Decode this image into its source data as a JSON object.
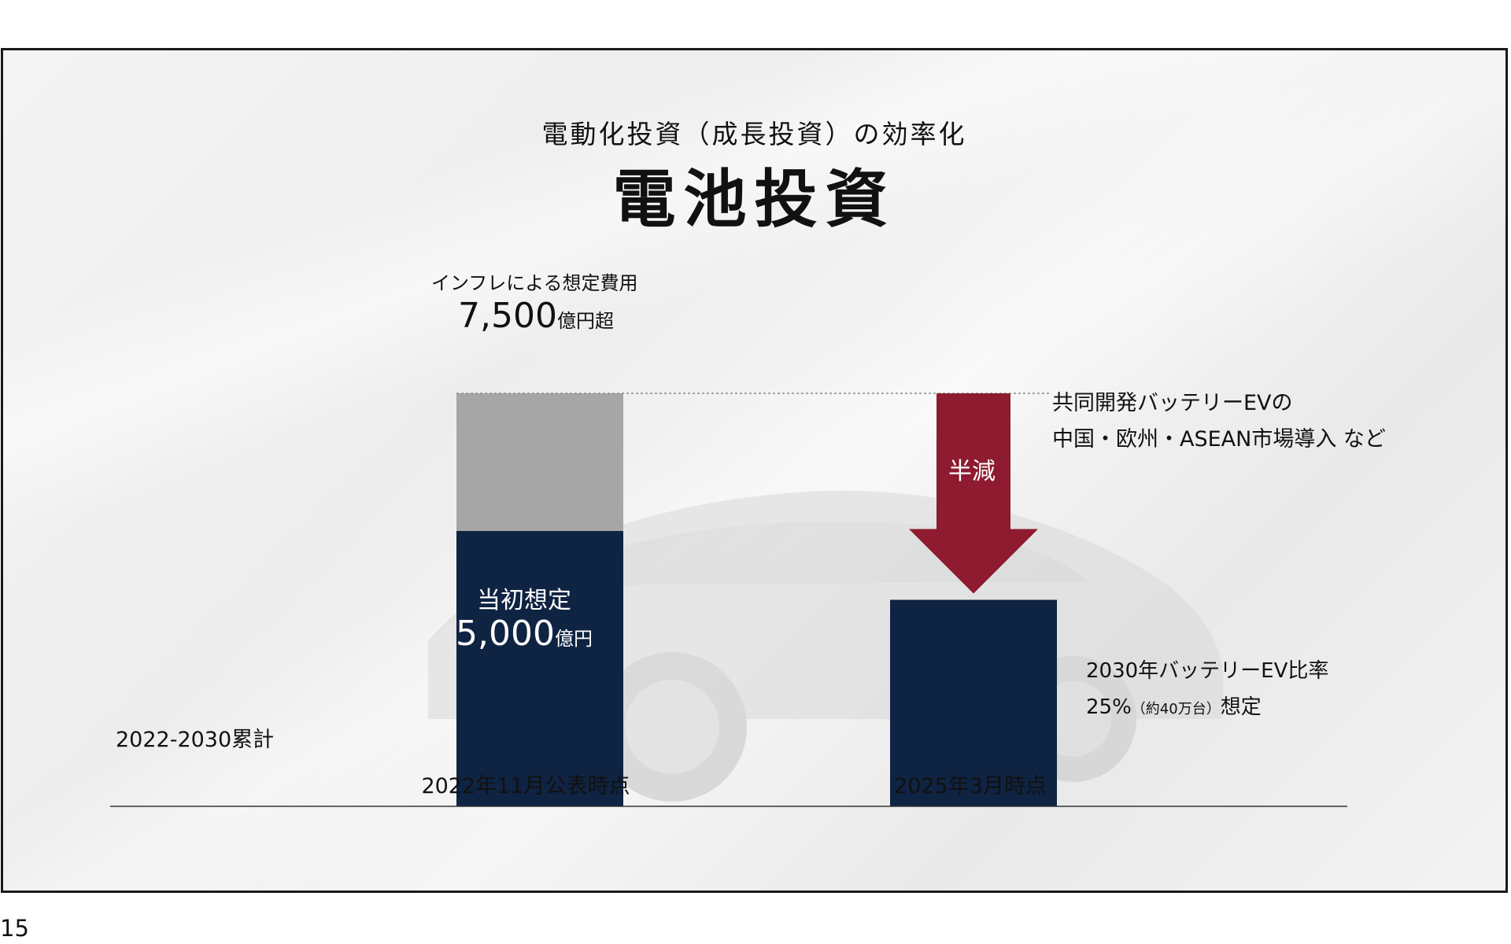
{
  "slide": {
    "subtitle": "電動化投資（成長投資）の効率化",
    "title": "電池投資",
    "page_number": "15"
  },
  "colors": {
    "navy": "#0f2342",
    "inflation_gray": "#a6a6a6",
    "arrow_red": "#8e1b2f"
  },
  "chart_data": {
    "type": "bar",
    "stacked": true,
    "unit": "億円",
    "categories": [
      "2022年11月公表時点",
      "2025年3月時点"
    ],
    "series": [
      {
        "name": "当初想定",
        "values": [
          5000,
          3750
        ]
      },
      {
        "name": "インフレによる想定費用",
        "values": [
          2500,
          0
        ]
      }
    ],
    "ylim": [
      0,
      7500
    ],
    "cumulative_label": "2022-2030累計",
    "annotations": {
      "inflation_label": "インフレによる想定費用",
      "inflation_value": "7,500",
      "inflation_unit": "億円超",
      "initial_label": "当初想定",
      "initial_value": "5,000",
      "initial_unit": "億円",
      "arrow_label": "半減",
      "note1_line1": "共同開発バッテリーEVの",
      "note1_line2": "中国・欧州・ASEAN市場導入 など",
      "note2_line1": "2030年バッテリーEV比率",
      "note2_line2_a": "25%",
      "note2_line2_b": "（約40万台）",
      "note2_line2_c": "想定"
    },
    "grid": false,
    "legend": "none"
  }
}
